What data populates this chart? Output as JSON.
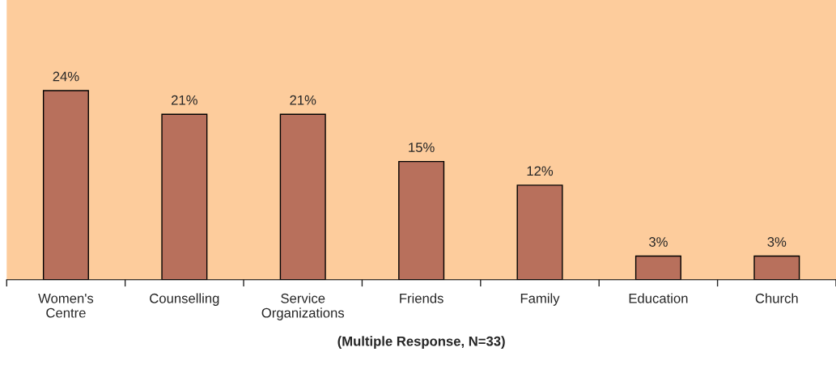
{
  "chart_data": {
    "type": "bar",
    "categories": [
      "Women's\nCentre",
      "Counselling",
      "Service\nOrganizations",
      "Friends",
      "Family",
      "Education",
      "Church"
    ],
    "values": [
      24,
      21,
      21,
      15,
      12,
      3,
      3
    ],
    "value_labels": [
      "24%",
      "21%",
      "21%",
      "15%",
      "12%",
      "3%",
      "3%"
    ],
    "color": "#b8705c",
    "xlabel": "(Multiple Response, N=33)",
    "ylim": [
      0,
      35.5
    ],
    "tick_labels": "x",
    "grid": false,
    "legend": false
  }
}
